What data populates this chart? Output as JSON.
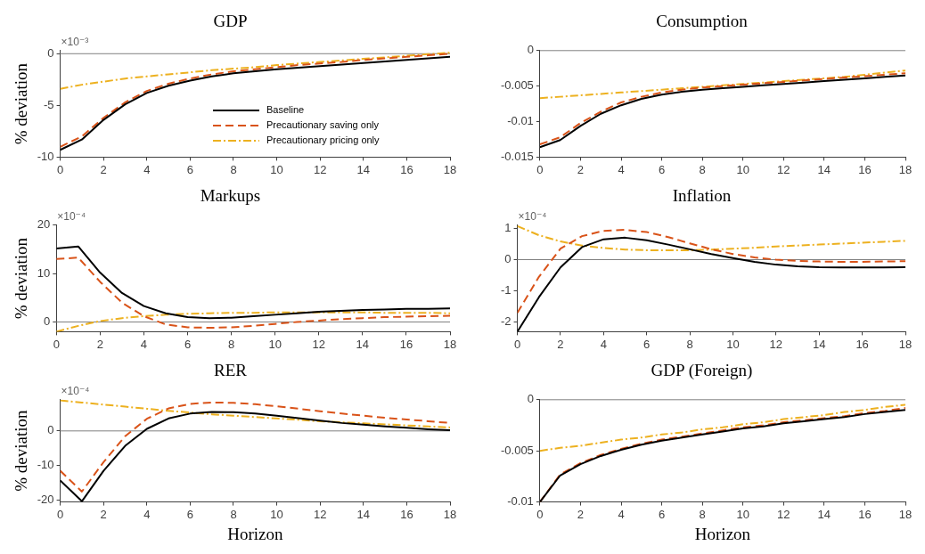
{
  "chart_data": [
    {
      "type": "line",
      "title": "GDP",
      "ylabel": "% deviation",
      "annotations": [
        "×10⁻³"
      ],
      "x": [
        0,
        1,
        2,
        3,
        4,
        5,
        6,
        7,
        8,
        9,
        10,
        11,
        12,
        13,
        14,
        15,
        16,
        17,
        18
      ],
      "xlim": [
        0,
        18
      ],
      "xticks": [
        0,
        2,
        4,
        6,
        8,
        10,
        12,
        14,
        16,
        18
      ],
      "ylim": [
        -10,
        0.3
      ],
      "yticks": [
        -10,
        -5,
        0
      ],
      "grid": false,
      "legend": "bottom right",
      "ref_lines": [
        {
          "axis": "y",
          "value": 0,
          "color": "#808080"
        }
      ],
      "series": [
        {
          "name": "Baseline",
          "color": "#000000",
          "line_style": "solid",
          "values": [
            -9.3,
            -8.3,
            -6.4,
            -4.9,
            -3.8,
            -3.1,
            -2.6,
            -2.2,
            -1.9,
            -1.7,
            -1.5,
            -1.35,
            -1.2,
            -1.05,
            -0.9,
            -0.75,
            -0.6,
            -0.45,
            -0.3
          ]
        },
        {
          "name": "Precautionary saving only",
          "color": "#d95319",
          "line_style": "dashed",
          "values": [
            -9.0,
            -8.0,
            -6.2,
            -4.7,
            -3.6,
            -2.9,
            -2.4,
            -2.0,
            -1.7,
            -1.5,
            -1.3,
            -1.1,
            -0.95,
            -0.8,
            -0.6,
            -0.45,
            -0.3,
            -0.15,
            0.0
          ]
        },
        {
          "name": "Precautionary pricing only",
          "color": "#edb120",
          "line_style": "dashdot",
          "values": [
            -3.4,
            -3.0,
            -2.7,
            -2.4,
            -2.2,
            -2.0,
            -1.8,
            -1.6,
            -1.45,
            -1.3,
            -1.1,
            -0.95,
            -0.8,
            -0.65,
            -0.5,
            -0.35,
            -0.2,
            -0.05,
            0.1
          ]
        }
      ]
    },
    {
      "type": "line",
      "title": "Consumption",
      "x": [
        0,
        1,
        2,
        3,
        4,
        5,
        6,
        7,
        8,
        9,
        10,
        11,
        12,
        13,
        14,
        15,
        16,
        17,
        18
      ],
      "xlim": [
        0,
        18
      ],
      "xticks": [
        0,
        2,
        4,
        6,
        8,
        10,
        12,
        14,
        16,
        18
      ],
      "ylim": [
        -0.015,
        0
      ],
      "yticks": [
        -0.015,
        -0.01,
        -0.005,
        0
      ],
      "grid": false,
      "legend": false,
      "ref_lines": [
        {
          "axis": "y",
          "value": 0,
          "color": "#808080"
        }
      ],
      "series": [
        {
          "color": "#000000",
          "line_style": "solid",
          "values": [
            -0.0136,
            -0.0126,
            -0.0106,
            -0.0089,
            -0.0077,
            -0.0068,
            -0.0062,
            -0.0058,
            -0.0055,
            -0.0053,
            -0.0051,
            -0.0049,
            -0.0047,
            -0.0045,
            -0.0043,
            -0.0041,
            -0.0039,
            -0.0037,
            -0.0035
          ]
        },
        {
          "color": "#d95319",
          "line_style": "dashed",
          "values": [
            -0.0132,
            -0.0122,
            -0.0102,
            -0.0086,
            -0.0073,
            -0.0065,
            -0.0059,
            -0.0055,
            -0.0052,
            -0.005,
            -0.0048,
            -0.0046,
            -0.0044,
            -0.0042,
            -0.004,
            -0.0038,
            -0.0036,
            -0.0034,
            -0.0032
          ]
        },
        {
          "color": "#edb120",
          "line_style": "dashdot",
          "values": [
            -0.0067,
            -0.0065,
            -0.0063,
            -0.0061,
            -0.0059,
            -0.0057,
            -0.0055,
            -0.0053,
            -0.0051,
            -0.0049,
            -0.0047,
            -0.0045,
            -0.0043,
            -0.0041,
            -0.0039,
            -0.0037,
            -0.0034,
            -0.0031,
            -0.0028
          ]
        }
      ]
    },
    {
      "type": "line",
      "title": "Markups",
      "ylabel": "% deviation",
      "annotations": [
        "×10⁻⁴"
      ],
      "x": [
        0,
        1,
        2,
        3,
        4,
        5,
        6,
        7,
        8,
        9,
        10,
        11,
        12,
        13,
        14,
        15,
        16,
        17,
        18
      ],
      "xlim": [
        0,
        18
      ],
      "xticks": [
        0,
        2,
        4,
        6,
        8,
        10,
        12,
        14,
        16,
        18
      ],
      "ylim": [
        -2,
        20
      ],
      "yticks": [
        0,
        10,
        20
      ],
      "grid": false,
      "legend": false,
      "ref_lines": [
        {
          "axis": "y",
          "value": 0,
          "color": "#808080"
        }
      ],
      "series": [
        {
          "color": "#000000",
          "line_style": "solid",
          "values": [
            15.2,
            15.6,
            10.2,
            6.0,
            3.3,
            1.8,
            1.0,
            0.8,
            0.9,
            1.2,
            1.5,
            1.8,
            2.1,
            2.3,
            2.5,
            2.6,
            2.7,
            2.7,
            2.8
          ]
        },
        {
          "color": "#d95319",
          "line_style": "dashed",
          "values": [
            13.0,
            13.3,
            8.3,
            4.0,
            1.2,
            -0.5,
            -1.1,
            -1.2,
            -1.1,
            -0.8,
            -0.4,
            0.0,
            0.3,
            0.6,
            0.8,
            1.0,
            1.1,
            1.2,
            1.3
          ]
        },
        {
          "color": "#edb120",
          "line_style": "dashdot",
          "values": [
            -2.0,
            -0.8,
            0.2,
            0.8,
            1.2,
            1.5,
            1.7,
            1.8,
            1.9,
            1.9,
            2.0,
            2.0,
            2.0,
            2.0,
            2.0,
            1.9,
            1.9,
            1.9,
            1.8
          ]
        }
      ]
    },
    {
      "type": "line",
      "title": "Inflation",
      "annotations": [
        "×10⁻⁴"
      ],
      "x": [
        0,
        1,
        2,
        3,
        4,
        5,
        6,
        7,
        8,
        9,
        10,
        11,
        12,
        13,
        14,
        15,
        16,
        17,
        18
      ],
      "xlim": [
        0,
        18
      ],
      "xticks": [
        0,
        2,
        4,
        6,
        8,
        10,
        12,
        14,
        16,
        18
      ],
      "ylim": [
        -2.3,
        1.1
      ],
      "yticks": [
        -2,
        -1,
        0,
        1
      ],
      "grid": false,
      "legend": false,
      "ref_lines": [
        {
          "axis": "y",
          "value": 0,
          "color": "#808080"
        }
      ],
      "series": [
        {
          "color": "#000000",
          "line_style": "solid",
          "values": [
            -2.3,
            -1.2,
            -0.25,
            0.4,
            0.65,
            0.7,
            0.62,
            0.48,
            0.33,
            0.18,
            0.05,
            -0.07,
            -0.16,
            -0.21,
            -0.24,
            -0.25,
            -0.25,
            -0.25,
            -0.24
          ]
        },
        {
          "color": "#d95319",
          "line_style": "dashed",
          "values": [
            -1.7,
            -0.55,
            0.35,
            0.75,
            0.92,
            0.95,
            0.88,
            0.72,
            0.52,
            0.33,
            0.18,
            0.07,
            0.0,
            -0.04,
            -0.06,
            -0.07,
            -0.07,
            -0.06,
            -0.05
          ]
        },
        {
          "color": "#edb120",
          "line_style": "dashdot",
          "values": [
            1.07,
            0.78,
            0.58,
            0.45,
            0.37,
            0.32,
            0.3,
            0.3,
            0.3,
            0.32,
            0.35,
            0.38,
            0.42,
            0.45,
            0.48,
            0.51,
            0.54,
            0.57,
            0.6
          ]
        }
      ]
    },
    {
      "type": "line",
      "title": "RER",
      "xlabel": "Horizon",
      "ylabel": "% deviation",
      "annotations": [
        "×10⁻⁴"
      ],
      "x": [
        0,
        1,
        2,
        3,
        4,
        5,
        6,
        7,
        8,
        9,
        10,
        11,
        12,
        13,
        14,
        15,
        16,
        17,
        18
      ],
      "xlim": [
        0,
        18
      ],
      "xticks": [
        0,
        2,
        4,
        6,
        8,
        10,
        12,
        14,
        16,
        18
      ],
      "ylim": [
        -20.5,
        9
      ],
      "yticks": [
        -20,
        -10,
        0
      ],
      "grid": false,
      "legend": false,
      "ref_lines": [
        {
          "axis": "y",
          "value": 0,
          "color": "#808080"
        }
      ],
      "series": [
        {
          "color": "#000000",
          "line_style": "solid",
          "values": [
            -14.3,
            -20.3,
            -11.5,
            -4.3,
            0.6,
            3.6,
            5.0,
            5.5,
            5.4,
            5.0,
            4.4,
            3.7,
            3.0,
            2.3,
            1.8,
            1.3,
            0.9,
            0.5,
            0.2
          ]
        },
        {
          "color": "#d95319",
          "line_style": "dashed",
          "values": [
            -11.5,
            -17.5,
            -9.0,
            -1.5,
            3.5,
            6.5,
            7.8,
            8.2,
            8.1,
            7.7,
            7.1,
            6.4,
            5.7,
            5.0,
            4.4,
            3.8,
            3.3,
            2.8,
            2.3
          ]
        },
        {
          "color": "#edb120",
          "line_style": "dashdot",
          "values": [
            8.8,
            8.2,
            7.6,
            7.0,
            6.4,
            5.8,
            5.3,
            4.8,
            4.4,
            4.0,
            3.6,
            3.2,
            2.8,
            2.5,
            2.2,
            1.9,
            1.6,
            1.3,
            1.0
          ]
        }
      ]
    },
    {
      "type": "line",
      "title": "GDP (Foreign)",
      "xlabel": "Horizon",
      "x": [
        0,
        1,
        2,
        3,
        4,
        5,
        6,
        7,
        8,
        9,
        10,
        11,
        12,
        13,
        14,
        15,
        16,
        17,
        18
      ],
      "xlim": [
        0,
        18
      ],
      "xticks": [
        0,
        2,
        4,
        6,
        8,
        10,
        12,
        14,
        16,
        18
      ],
      "ylim": [
        -0.01,
        0
      ],
      "yticks": [
        -0.01,
        -0.005,
        0
      ],
      "grid": false,
      "legend": false,
      "ref_lines": [
        {
          "axis": "y",
          "value": 0,
          "color": "#808080"
        }
      ],
      "series": [
        {
          "color": "#000000",
          "line_style": "solid",
          "values": [
            -0.01,
            -0.0074,
            -0.0063,
            -0.0055,
            -0.0049,
            -0.0044,
            -0.004,
            -0.0037,
            -0.0034,
            -0.0031,
            -0.0028,
            -0.0026,
            -0.0023,
            -0.0021,
            -0.0019,
            -0.0017,
            -0.0014,
            -0.0012,
            -0.001
          ]
        },
        {
          "color": "#d95319",
          "line_style": "dashed",
          "values": [
            -0.01,
            -0.0073,
            -0.0062,
            -0.0054,
            -0.0048,
            -0.0043,
            -0.0039,
            -0.0036,
            -0.0033,
            -0.003,
            -0.0027,
            -0.0025,
            -0.0022,
            -0.002,
            -0.0018,
            -0.0016,
            -0.0013,
            -0.0011,
            -0.0008
          ]
        },
        {
          "color": "#edb120",
          "line_style": "dashdot",
          "values": [
            -0.005,
            -0.0047,
            -0.0045,
            -0.0042,
            -0.0039,
            -0.0037,
            -0.0034,
            -0.0032,
            -0.0029,
            -0.0027,
            -0.0024,
            -0.0022,
            -0.0019,
            -0.0017,
            -0.0015,
            -0.0012,
            -0.001,
            -0.0007,
            -0.0005
          ]
        }
      ]
    }
  ]
}
